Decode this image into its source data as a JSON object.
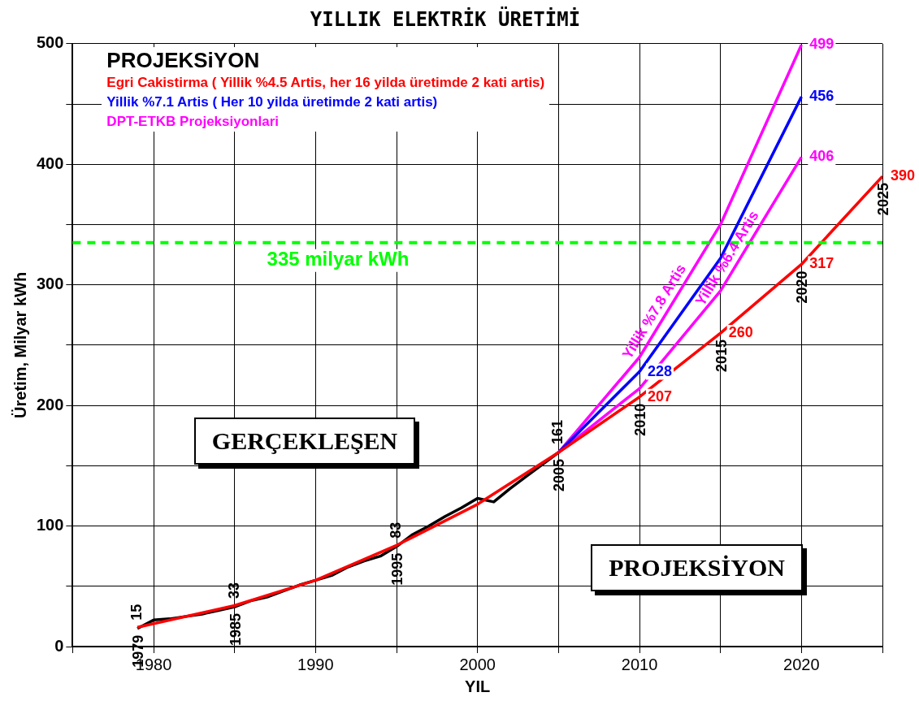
{
  "chart_data": {
    "type": "line",
    "title": "YILLIK ELEKTRİK ÜRETİMİ",
    "xlabel": "YIL",
    "ylabel": "Üretim, Milyar kWh",
    "legend_title": "PROJEKSiYON",
    "legend": "top left",
    "grid": true,
    "marker": "none",
    "line_style": "solid",
    "xlim": [
      1975,
      2025
    ],
    "xticks": [
      {
        "value": 1975,
        "label": null
      },
      1980,
      {
        "value": 1985,
        "label": null
      },
      1990,
      {
        "value": 1995,
        "label": null
      },
      2000,
      {
        "value": 2005,
        "label": null
      },
      2010,
      {
        "value": 2015,
        "label": null
      },
      2020,
      {
        "value": 2025,
        "label": null
      }
    ],
    "ylim": [
      0,
      500
    ],
    "yticks": [
      0,
      {
        "value": 50,
        "label": null
      },
      100,
      {
        "value": 150,
        "label": null
      },
      200,
      {
        "value": 250,
        "label": null
      },
      300,
      {
        "value": 350,
        "label": null
      },
      400,
      {
        "value": 450,
        "label": null
      },
      500
    ],
    "series": [
      {
        "color": "#ff0000",
        "name": "Egri Cakistirma ( Yillik %4.5 Artis, her 16 yilda üretimde 2 kati artis)",
        "x": [
          1979,
          1985,
          1990,
          1995,
          2000,
          2005,
          2010,
          2015,
          2020,
          2025
        ],
        "values": [
          16,
          34,
          55,
          84,
          118,
          161,
          207,
          260,
          317,
          390
        ],
        "value_labels": [
          null,
          null,
          null,
          null,
          null,
          null,
          "207",
          "260",
          "317",
          "390"
        ]
      },
      {
        "color": "#000000",
        "value_labels": [
          "15",
          null,
          null,
          null,
          null,
          null,
          "33",
          null,
          null,
          null,
          null,
          null,
          null,
          null,
          null,
          null,
          "83",
          null,
          null,
          null,
          null,
          null,
          null,
          null,
          null,
          null,
          "161"
        ],
        "x": [
          1979,
          1980,
          1981,
          1982,
          1983,
          1984,
          1985,
          1986,
          1987,
          1988,
          1989,
          1990,
          1991,
          1992,
          1993,
          1994,
          1995,
          1996,
          1997,
          1998,
          1999,
          2000,
          2001,
          2002,
          2003,
          2004,
          2005
        ],
        "values": [
          15,
          22,
          23,
          25,
          27,
          30,
          33,
          38,
          41,
          46,
          51,
          55,
          59,
          66,
          71,
          75,
          83,
          93,
          100,
          108,
          115,
          123,
          120,
          131,
          141,
          151,
          161
        ]
      },
      {
        "color": "#0000ff",
        "name": "Yillik %7.1 Artis ( Her 10 yilda üretimde 2 kati artis)",
        "x": [
          2005,
          2010,
          2015,
          2020
        ],
        "values": [
          161,
          228,
          322,
          456
        ],
        "value_labels": [
          null,
          "228",
          null,
          "456"
        ]
      },
      {
        "color": "#ff00ff",
        "name": "DPT-ETKB Projeksiyonlari",
        "x": [
          2005,
          2010,
          2015,
          2020
        ],
        "values": [
          161,
          240,
          350,
          499
        ],
        "value_labels": [
          null,
          null,
          null,
          "499"
        ]
      },
      {
        "color": "#ff00ff",
        "x": [
          2005,
          2010,
          2015,
          2020
        ],
        "values": [
          161,
          214,
          295,
          406
        ],
        "value_labels": [
          null,
          null,
          null,
          "406"
        ]
      }
    ],
    "ref_lines": [
      {
        "axis": "y",
        "value": 335,
        "label": "335 milyar kWh",
        "color": "#00ff00",
        "line_style": "dashed"
      }
    ],
    "annotations": [
      "GERÇEKLEŞEN",
      "PROJEKSİYON",
      {
        "text": "1979",
        "x": 1979,
        "y": 15
      },
      {
        "text": "1985",
        "x": 1985,
        "y": 33
      },
      {
        "text": "1995",
        "x": 1995,
        "y": 83
      },
      {
        "text": "2005",
        "x": 2005,
        "y": 161
      },
      {
        "text": "2010",
        "x": 2010,
        "y": 207
      },
      {
        "text": "2015",
        "x": 2015,
        "y": 260
      },
      {
        "text": "2020",
        "x": 2020,
        "y": 317
      },
      {
        "text": "2025",
        "x": 2025,
        "y": 390
      },
      {
        "text": "Yillik %7.8 Artis",
        "x": 2011.5,
        "y": 273
      },
      {
        "text": "Yillik %6.4 Artis",
        "x": 2016,
        "y": 317.2
      }
    ]
  }
}
